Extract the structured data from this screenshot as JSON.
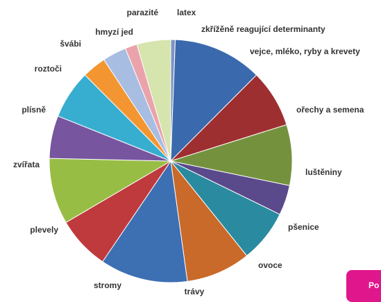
{
  "chart_data": {
    "type": "pie",
    "start_angle_deg": 0,
    "direction": "clockwise",
    "slices": [
      {
        "label": "zkřížěně reagující determinanty",
        "value": 0.6,
        "color": "#7f93c4"
      },
      {
        "label": "vejce, mléko, ryby a krevety",
        "value": 11.9,
        "color": "#3a6aad"
      },
      {
        "label": "ořechy a semena",
        "value": 7.7,
        "color": "#9e2f31"
      },
      {
        "label": "luštěniny",
        "value": 8.1,
        "color": "#74923e"
      },
      {
        "label": "pšenice",
        "value": 4.0,
        "color": "#5b4a8b"
      },
      {
        "label": "ovoce",
        "value": 7.0,
        "color": "#2a8aa0"
      },
      {
        "label": "trávy",
        "value": 8.6,
        "color": "#c9692a"
      },
      {
        "label": "stromy",
        "value": 11.7,
        "color": "#3d6fb3"
      },
      {
        "label": "plevely",
        "value": 7.1,
        "color": "#bf3a3c"
      },
      {
        "label": "zvířata",
        "value": 8.8,
        "color": "#98bd45"
      },
      {
        "label": "plísně",
        "value": 5.7,
        "color": "#77559f"
      },
      {
        "label": "roztoči",
        "value": 6.5,
        "color": "#37aed0"
      },
      {
        "label": "švábi",
        "value": 3.2,
        "color": "#f39632"
      },
      {
        "label": "hmyzí jed",
        "value": 3.2,
        "color": "#a8bde2"
      },
      {
        "label": "parazité",
        "value": 1.6,
        "color": "#eaa3aa"
      },
      {
        "label": "latex",
        "value": 4.5,
        "color": "#d6e4ad"
      }
    ]
  },
  "corner_button": {
    "label": "Po",
    "color": "#e0168c"
  }
}
